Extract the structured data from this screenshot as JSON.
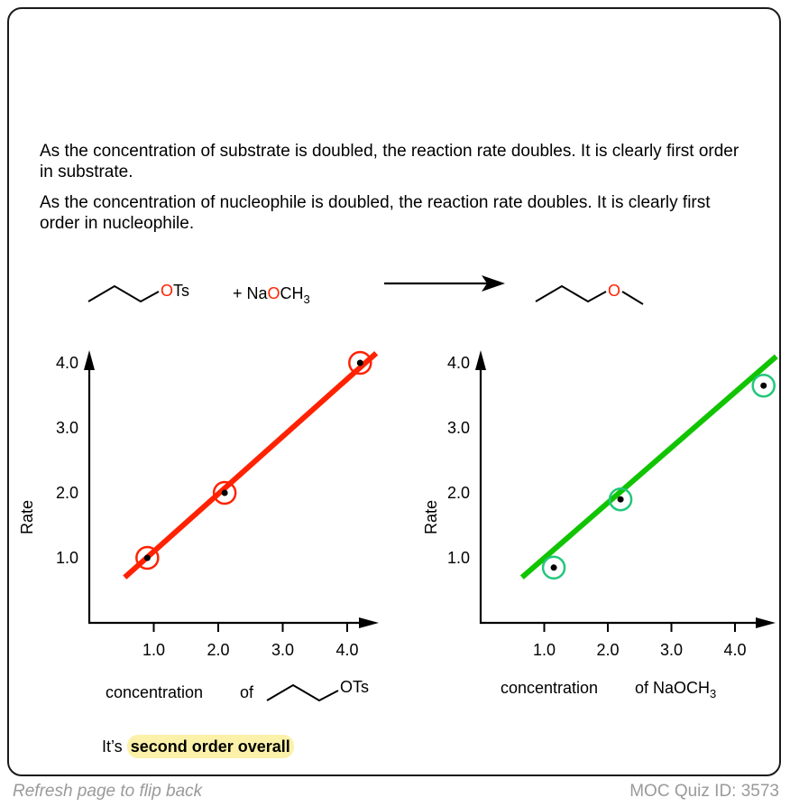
{
  "paragraphs": [
    "As the concentration of substrate is doubled, the reaction rate doubles. It is clearly first order in substrate.",
    "As the concentration of nucleophile is doubled, the reaction rate doubles. It is clearly first order in nucleophile."
  ],
  "reaction": {
    "substrate_label": "OTs",
    "reagent_prefix": "+ Na",
    "reagent_o": "O",
    "reagent_ch": "CH",
    "reagent_sub": "3",
    "product_o": "O"
  },
  "colors": {
    "red": "#ff2200",
    "green": "#11c400",
    "green_circle": "#22c77a",
    "oxygen": "#ff2200",
    "highlight": "#fbf1a8"
  },
  "chart_data": [
    {
      "type": "scatter",
      "ylabel": "Rate",
      "xlabel_prefix": "concentration",
      "xlabel_of": "of",
      "xlabel_molecule": "OTs",
      "x_ticks": [
        "1.0",
        "2.0",
        "3.0",
        "4.0"
      ],
      "y_ticks": [
        "1.0",
        "2.0",
        "3.0",
        "4.0"
      ],
      "points": [
        {
          "x": 0.9,
          "y": 1.0
        },
        {
          "x": 2.1,
          "y": 2.0
        },
        {
          "x": 4.2,
          "y": 4.0
        }
      ],
      "fit_line": {
        "x0": 0.55,
        "y0": 0.7,
        "x1": 4.45,
        "y1": 4.15
      },
      "line_color": "#ff2200",
      "circle_color": "#ff2200"
    },
    {
      "type": "scatter",
      "ylabel": "Rate",
      "xlabel_prefix": "concentration",
      "xlabel_of": "of NaOCH",
      "xlabel_sub": "3",
      "x_ticks": [
        "1.0",
        "2.0",
        "3.0",
        "4.0"
      ],
      "y_ticks": [
        "1.0",
        "2.0",
        "3.0",
        "4.0"
      ],
      "points": [
        {
          "x": 1.15,
          "y": 0.85
        },
        {
          "x": 2.2,
          "y": 1.9
        },
        {
          "x": 4.45,
          "y": 3.65
        }
      ],
      "fit_line": {
        "x0": 0.65,
        "y0": 0.7,
        "x1": 4.65,
        "y1": 4.1
      },
      "line_color": "#11c400",
      "circle_color": "#22c77a"
    }
  ],
  "conclusion": {
    "prefix": "It’s ",
    "highlight": "second order overall"
  },
  "footer": {
    "left": "Refresh page to flip back",
    "right": "MOC Quiz ID: 3573"
  }
}
